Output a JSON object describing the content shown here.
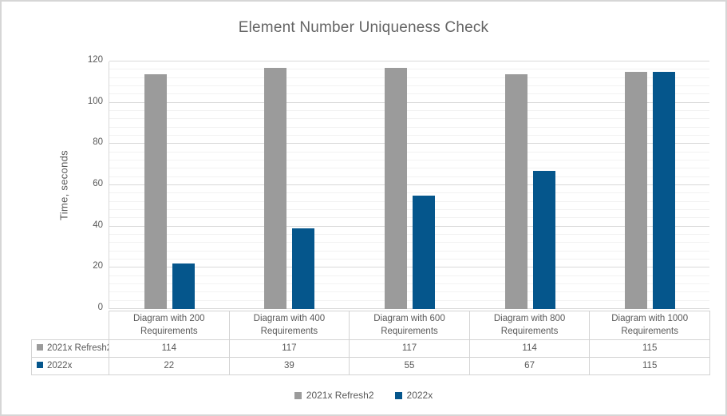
{
  "chart_data": {
    "type": "bar",
    "title": "Element Number Uniqueness Check",
    "ylabel": "Time, seconds",
    "xlabel": "",
    "categories": [
      "Diagram with 200 Requirements",
      "Diagram with 400 Requirements",
      "Diagram with 600 Requirements",
      "Diagram with 800 Requirements",
      "Diagram with 1000 Requirements"
    ],
    "series": [
      {
        "name": "2021x Refresh2",
        "color": "#9b9b9b",
        "values": [
          114,
          117,
          117,
          114,
          115
        ]
      },
      {
        "name": "2022x",
        "color": "#05568c",
        "values": [
          22,
          39,
          55,
          67,
          115
        ]
      }
    ],
    "ylim": [
      0,
      120
    ],
    "y_major_step": 20,
    "y_minor_step": 4,
    "grid": true,
    "legend_position": "bottom",
    "show_data_table": true
  },
  "colors": {
    "grid_major": "#d9d9d9",
    "grid_minor": "#f2f2f2",
    "table_border": "#d3d3d3",
    "frame_border": "#d6d6d6",
    "text": "#595959",
    "title_text": "#656565"
  }
}
